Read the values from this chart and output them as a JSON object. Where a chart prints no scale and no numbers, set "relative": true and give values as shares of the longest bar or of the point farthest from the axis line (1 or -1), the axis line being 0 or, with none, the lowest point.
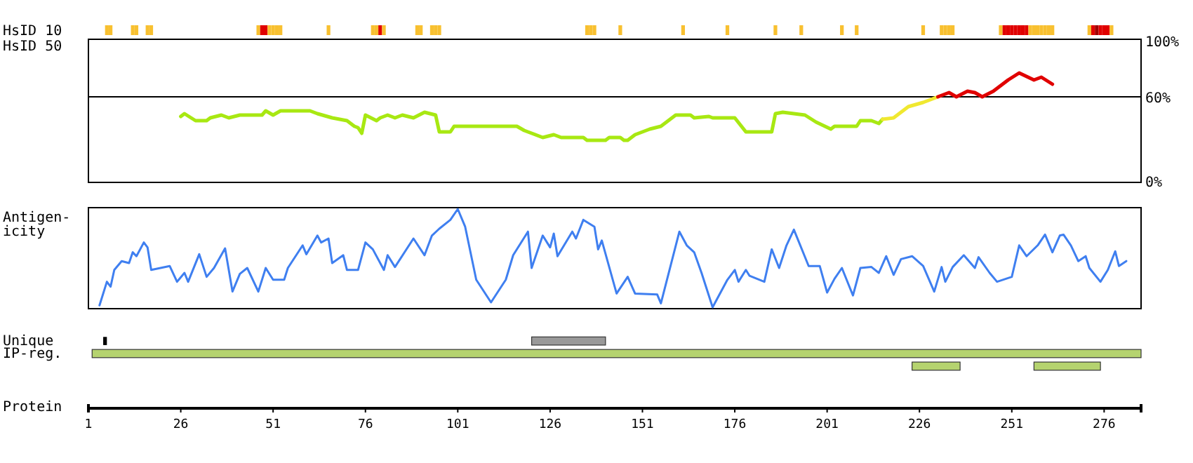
{
  "chart_data": [
    {
      "type": "bar",
      "ylabel": "HsID 10",
      "relative": true,
      "xlim": [
        1,
        286
      ],
      "x": [
        6,
        7,
        13,
        14,
        17,
        18,
        47,
        48,
        49,
        50,
        51,
        52,
        53,
        66,
        78,
        79,
        80,
        81,
        90,
        91,
        94,
        95,
        96,
        136,
        137,
        138,
        145,
        162,
        174,
        187,
        194,
        205,
        209,
        227,
        232,
        233,
        234,
        235,
        248,
        249,
        250,
        251,
        252,
        253,
        254,
        255,
        256,
        257,
        258,
        259,
        260,
        261,
        262,
        272,
        273,
        274,
        275,
        276,
        277,
        278
      ],
      "values": [
        1,
        1,
        1,
        1,
        1,
        1,
        1,
        1,
        1,
        1,
        1,
        1,
        1,
        1,
        1,
        1,
        1,
        1,
        1,
        1,
        1,
        1,
        1,
        1,
        1,
        1,
        1,
        1,
        1,
        1,
        1,
        1,
        1,
        1,
        1,
        1,
        1,
        1,
        1,
        1,
        1,
        1,
        1,
        1,
        1,
        1,
        1,
        1,
        1,
        1,
        1,
        1,
        1,
        1,
        1,
        1,
        1,
        1,
        1,
        1
      ],
      "colors": [
        "#f8c030",
        "#f8c030",
        "#f8c030",
        "#f8c030",
        "#f8c030",
        "#f8c030",
        "#f8c030",
        "#e00000",
        "#e00000",
        "#f8c030",
        "#f8c030",
        "#f8c030",
        "#f8c030",
        "#f8c030",
        "#f8c030",
        "#f8c030",
        "#e00000",
        "#f8c030",
        "#f8c030",
        "#f8c030",
        "#f8c030",
        "#f8c030",
        "#f8c030",
        "#f8c030",
        "#f8c030",
        "#f8c030",
        "#f8c030",
        "#f8c030",
        "#f8c030",
        "#f8c030",
        "#f8c030",
        "#f8c030",
        "#f8c030",
        "#f8c030",
        "#f8c030",
        "#f8c030",
        "#f8c030",
        "#f8c030",
        "#f8c030",
        "#e00000",
        "#e00000",
        "#e00000",
        "#e00000",
        "#e00000",
        "#e00000",
        "#e00000",
        "#f8c030",
        "#f8c030",
        "#f8c030",
        "#f8c030",
        "#f8c030",
        "#f8c030",
        "#f8c030",
        "#f8c030",
        "#e00000",
        "#a00000",
        "#e00000",
        "#e00000",
        "#e00000",
        "#f8c030"
      ]
    },
    {
      "type": "line",
      "ylabel": "HsID 50",
      "xlim": [
        1,
        286
      ],
      "ylim": [
        0,
        100
      ],
      "yticks": [
        {
          "value": 0,
          "label": "0%"
        },
        {
          "value": 60,
          "label": "60%"
        },
        {
          "value": 100,
          "label": "100%"
        }
      ],
      "tick_labels": "y",
      "ref_lines": [
        {
          "axis": "y",
          "value": 60,
          "label": null,
          "color": "#000000"
        }
      ],
      "series": [
        {
          "color": "#a8e812",
          "x": [
            26,
            27,
            30,
            33,
            34,
            37,
            39,
            42,
            48,
            49,
            51,
            53,
            61,
            63,
            67,
            71,
            73,
            74,
            75,
            76,
            79,
            80,
            82,
            84,
            86,
            89,
            92,
            95,
            96,
            99,
            100,
            117,
            119,
            124,
            127,
            129,
            135,
            136,
            141,
            142,
            145,
            146,
            147,
            149,
            153,
            156,
            160,
            164,
            165,
            169,
            170,
            176,
            179,
            186,
            187,
            189,
            195,
            198,
            202,
            203,
            209,
            210,
            213,
            215,
            216
          ],
          "values": [
            46,
            48,
            43,
            43,
            45,
            47,
            45,
            47,
            47,
            50,
            47,
            50,
            50,
            48,
            45,
            43,
            39,
            38,
            34,
            47,
            43,
            45,
            47,
            45,
            47,
            45,
            49,
            47,
            35,
            35,
            39,
            39,
            36,
            31,
            33,
            31,
            31,
            29,
            29,
            31,
            31,
            29,
            29,
            33,
            37,
            39,
            47,
            47,
            45,
            46,
            45,
            45,
            35,
            35,
            48,
            49,
            47,
            42,
            37,
            39,
            39,
            43,
            43,
            41,
            44
          ]
        },
        {
          "color": "#f0e830",
          "x": [
            216,
            219,
            223,
            227,
            229,
            231
          ],
          "values": [
            44,
            45,
            53,
            56,
            58,
            60
          ]
        },
        {
          "color": "#e00000",
          "x": [
            231,
            234,
            236,
            239,
            241,
            243,
            246,
            250,
            253,
            257,
            259,
            262
          ],
          "values": [
            60,
            63,
            60,
            64,
            63,
            60,
            64,
            72,
            77,
            72,
            74,
            69
          ]
        }
      ]
    },
    {
      "type": "line",
      "ylabel": "Antigen-\nicity",
      "relative": true,
      "xlim": [
        1,
        286
      ],
      "series": [
        {
          "color": "#3f7ff0",
          "x": [
            4,
            6,
            7,
            8,
            10,
            12,
            13,
            14,
            16,
            17,
            18,
            23,
            25,
            27,
            28,
            31,
            33,
            35,
            38,
            40,
            42,
            44,
            47,
            49,
            51,
            54,
            55,
            59,
            60,
            63,
            64,
            66,
            67,
            70,
            71,
            74,
            76,
            78,
            81,
            82,
            84,
            89,
            92,
            94,
            96,
            99,
            101,
            103,
            106,
            110,
            114,
            116,
            120,
            121,
            124,
            126,
            127,
            128,
            132,
            133,
            135,
            138,
            139,
            140,
            144,
            147,
            149,
            155,
            156,
            161,
            163,
            165,
            167,
            170,
            174,
            176,
            177,
            179,
            180,
            184,
            186,
            188,
            190,
            192,
            196,
            199,
            201,
            203,
            205,
            208,
            210,
            213,
            215,
            217,
            219,
            221,
            224,
            227,
            230,
            232,
            233,
            235,
            238,
            241,
            242,
            245,
            247,
            251,
            253,
            255,
            258,
            260,
            262,
            264,
            265,
            267,
            269,
            271,
            272,
            275,
            277,
            279,
            280,
            282
          ],
          "values": [
            0.02,
            0.26,
            0.21,
            0.38,
            0.47,
            0.45,
            0.56,
            0.52,
            0.66,
            0.61,
            0.38,
            0.42,
            0.26,
            0.35,
            0.26,
            0.54,
            0.31,
            0.4,
            0.6,
            0.16,
            0.34,
            0.4,
            0.16,
            0.4,
            0.28,
            0.28,
            0.4,
            0.63,
            0.54,
            0.73,
            0.66,
            0.7,
            0.45,
            0.53,
            0.38,
            0.38,
            0.66,
            0.59,
            0.38,
            0.53,
            0.41,
            0.7,
            0.53,
            0.73,
            0.8,
            0.89,
            1,
            0.82,
            0.28,
            0.05,
            0.28,
            0.53,
            0.77,
            0.4,
            0.73,
            0.61,
            0.75,
            0.52,
            0.77,
            0.7,
            0.89,
            0.82,
            0.59,
            0.68,
            0.14,
            0.31,
            0.14,
            0.13,
            0.04,
            0.77,
            0.63,
            0.56,
            0.35,
            0,
            0.28,
            0.38,
            0.26,
            0.38,
            0.32,
            0.26,
            0.59,
            0.4,
            0.63,
            0.79,
            0.42,
            0.42,
            0.15,
            0.29,
            0.4,
            0.12,
            0.4,
            0.41,
            0.35,
            0.52,
            0.33,
            0.49,
            0.52,
            0.42,
            0.16,
            0.41,
            0.26,
            0.41,
            0.53,
            0.4,
            0.51,
            0.35,
            0.26,
            0.31,
            0.63,
            0.52,
            0.63,
            0.74,
            0.56,
            0.73,
            0.74,
            0.63,
            0.47,
            0.52,
            0.4,
            0.26,
            0.38,
            0.57,
            0.42,
            0.47
          ]
        }
      ]
    },
    {
      "type": "bar",
      "orientation": "horizontal",
      "categories": [
        "Unique",
        "IP-reg.",
        null
      ],
      "xlim": [
        1,
        286
      ],
      "xticks": [
        1,
        26,
        51,
        76,
        101,
        126,
        151,
        176,
        201,
        226,
        251,
        276
      ],
      "xlabel": "Protein",
      "series": [
        {
          "color": "#000000",
          "base": [
            5,
            null,
            null
          ],
          "values": [
            1,
            null,
            null
          ]
        },
        {
          "color": "#999999",
          "base": [
            121,
            null,
            null
          ],
          "values": [
            20,
            null,
            null
          ]
        },
        {
          "color": "#b5d36f",
          "base": [
            null,
            2,
            224
          ],
          "values": [
            null,
            284,
            13
          ]
        },
        {
          "color": "#b5d36f",
          "base": [
            null,
            null,
            257
          ],
          "values": [
            null,
            null,
            18
          ]
        }
      ]
    }
  ]
}
